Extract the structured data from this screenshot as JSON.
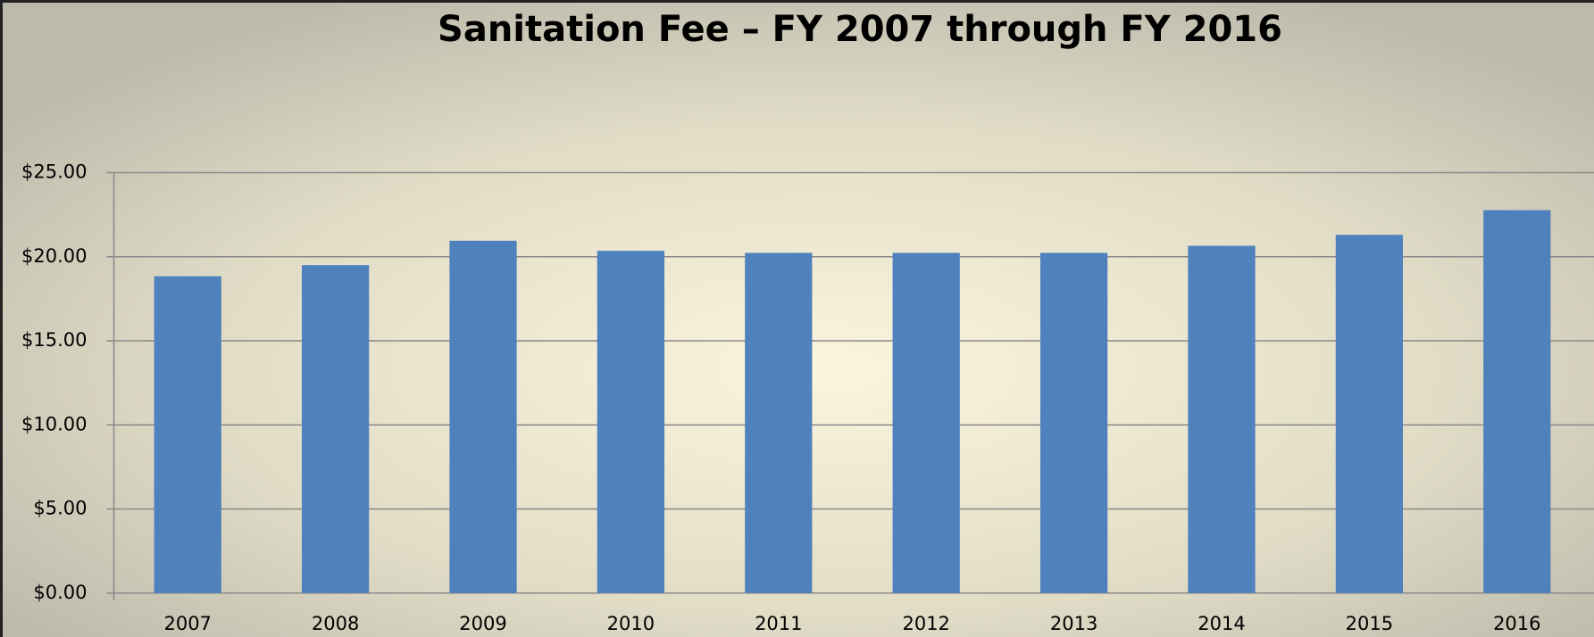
{
  "chart_data": {
    "type": "bar",
    "title": "Sanitation Fee – FY 2007 through FY 2016",
    "categories": [
      "2007",
      "2008",
      "2009",
      "2010",
      "2011",
      "2012",
      "2013",
      "2014",
      "2015",
      "2016"
    ],
    "values": [
      18.84,
      19.5,
      20.95,
      20.35,
      20.23,
      20.23,
      20.23,
      20.65,
      21.3,
      22.77
    ],
    "color": "#4f81bd",
    "ylim": [
      0,
      25
    ],
    "yticks": [
      {
        "value": 0,
        "label": "$0.00"
      },
      {
        "value": 5,
        "label": "$5.00"
      },
      {
        "value": 10,
        "label": "$10.00"
      },
      {
        "value": 15,
        "label": "$15.00"
      },
      {
        "value": 20,
        "label": "$20.00"
      },
      {
        "value": 25,
        "label": "$25.00"
      }
    ],
    "grid": true
  }
}
